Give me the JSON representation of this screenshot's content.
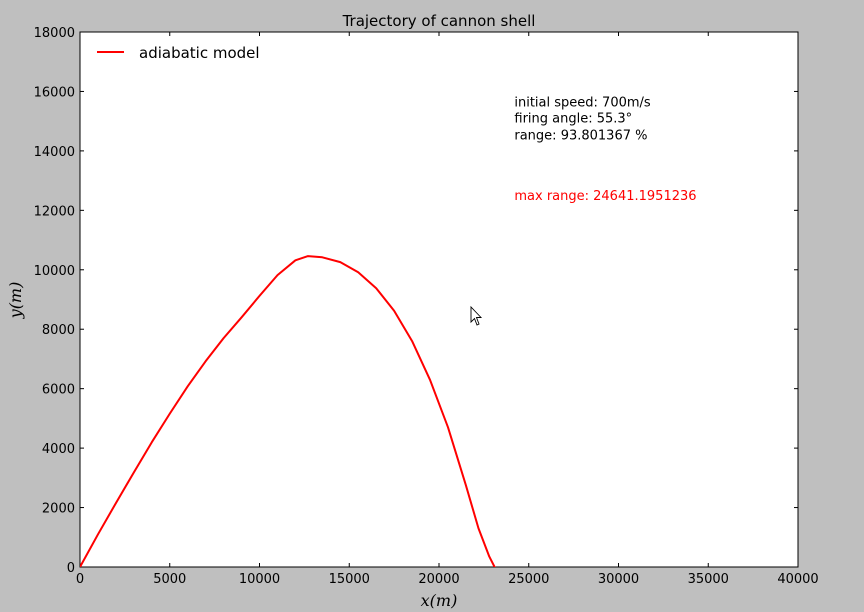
{
  "chart_data": {
    "type": "line",
    "title": "Trajectory of cannon shell",
    "xlabel": "x(m)",
    "ylabel": "y(m)",
    "xlim": [
      0,
      40000
    ],
    "ylim": [
      0,
      18000
    ],
    "xticks": [
      0,
      5000,
      10000,
      15000,
      20000,
      25000,
      30000,
      35000,
      40000
    ],
    "yticks": [
      0,
      2000,
      4000,
      6000,
      8000,
      10000,
      12000,
      14000,
      16000,
      18000
    ],
    "grid": false,
    "legend_position": "top-left",
    "series": [
      {
        "name": "adiabatic model",
        "color": "#ff0000",
        "x": [
          0,
          1000,
          2000,
          3000,
          4000,
          5000,
          6000,
          7000,
          8000,
          9000,
          10000,
          11000,
          12000,
          12700,
          13500,
          14500,
          15500,
          16500,
          17500,
          18500,
          19500,
          20500,
          21500,
          22200,
          22800,
          23100,
          23250
        ],
        "y": [
          0,
          1100,
          2150,
          3180,
          4200,
          5160,
          6080,
          6920,
          7700,
          8400,
          9120,
          9820,
          10320,
          10460,
          10420,
          10260,
          9920,
          9380,
          8620,
          7600,
          6300,
          4700,
          2750,
          1300,
          350,
          0,
          -80
        ]
      }
    ],
    "annotations": [
      {
        "text": "initial speed: 700m/s",
        "x": 24200,
        "y": 15500,
        "color": "#000000"
      },
      {
        "text": "firing angle: 55.3°",
        "x": 24200,
        "y": 14950,
        "color": "#000000"
      },
      {
        "text": "range: 93.801367 %",
        "x": 24200,
        "y": 14380,
        "color": "#000000"
      },
      {
        "text": "max range: 24641.1951236",
        "x": 24200,
        "y": 12350,
        "color": "#ff0000"
      }
    ]
  }
}
